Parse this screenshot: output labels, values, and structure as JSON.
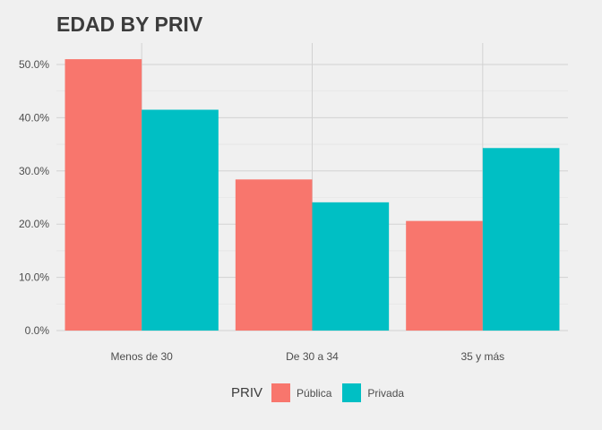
{
  "chart_data": {
    "type": "bar",
    "title": "EDAD BY PRIV",
    "xlabel": "",
    "ylabel": "",
    "categories": [
      "Menos de 30",
      "De 30 a 34",
      "35 y más"
    ],
    "series": [
      {
        "name": "Pública",
        "color": "#f8766d",
        "values": [
          0.51,
          0.284,
          0.206
        ]
      },
      {
        "name": "Privada",
        "color": "#00bfc4",
        "values": [
          0.415,
          0.241,
          0.343
        ]
      }
    ],
    "ylim": [
      0,
      0.55
    ],
    "yticks": [
      0,
      0.1,
      0.2,
      0.3,
      0.4,
      0.5
    ],
    "ytick_labels": [
      "0.0%",
      "10.0%",
      "20.0%",
      "30.0%",
      "40.0%",
      "50.0%"
    ],
    "grid": true,
    "legend": {
      "title": "PRIV",
      "position": "bottom"
    }
  }
}
